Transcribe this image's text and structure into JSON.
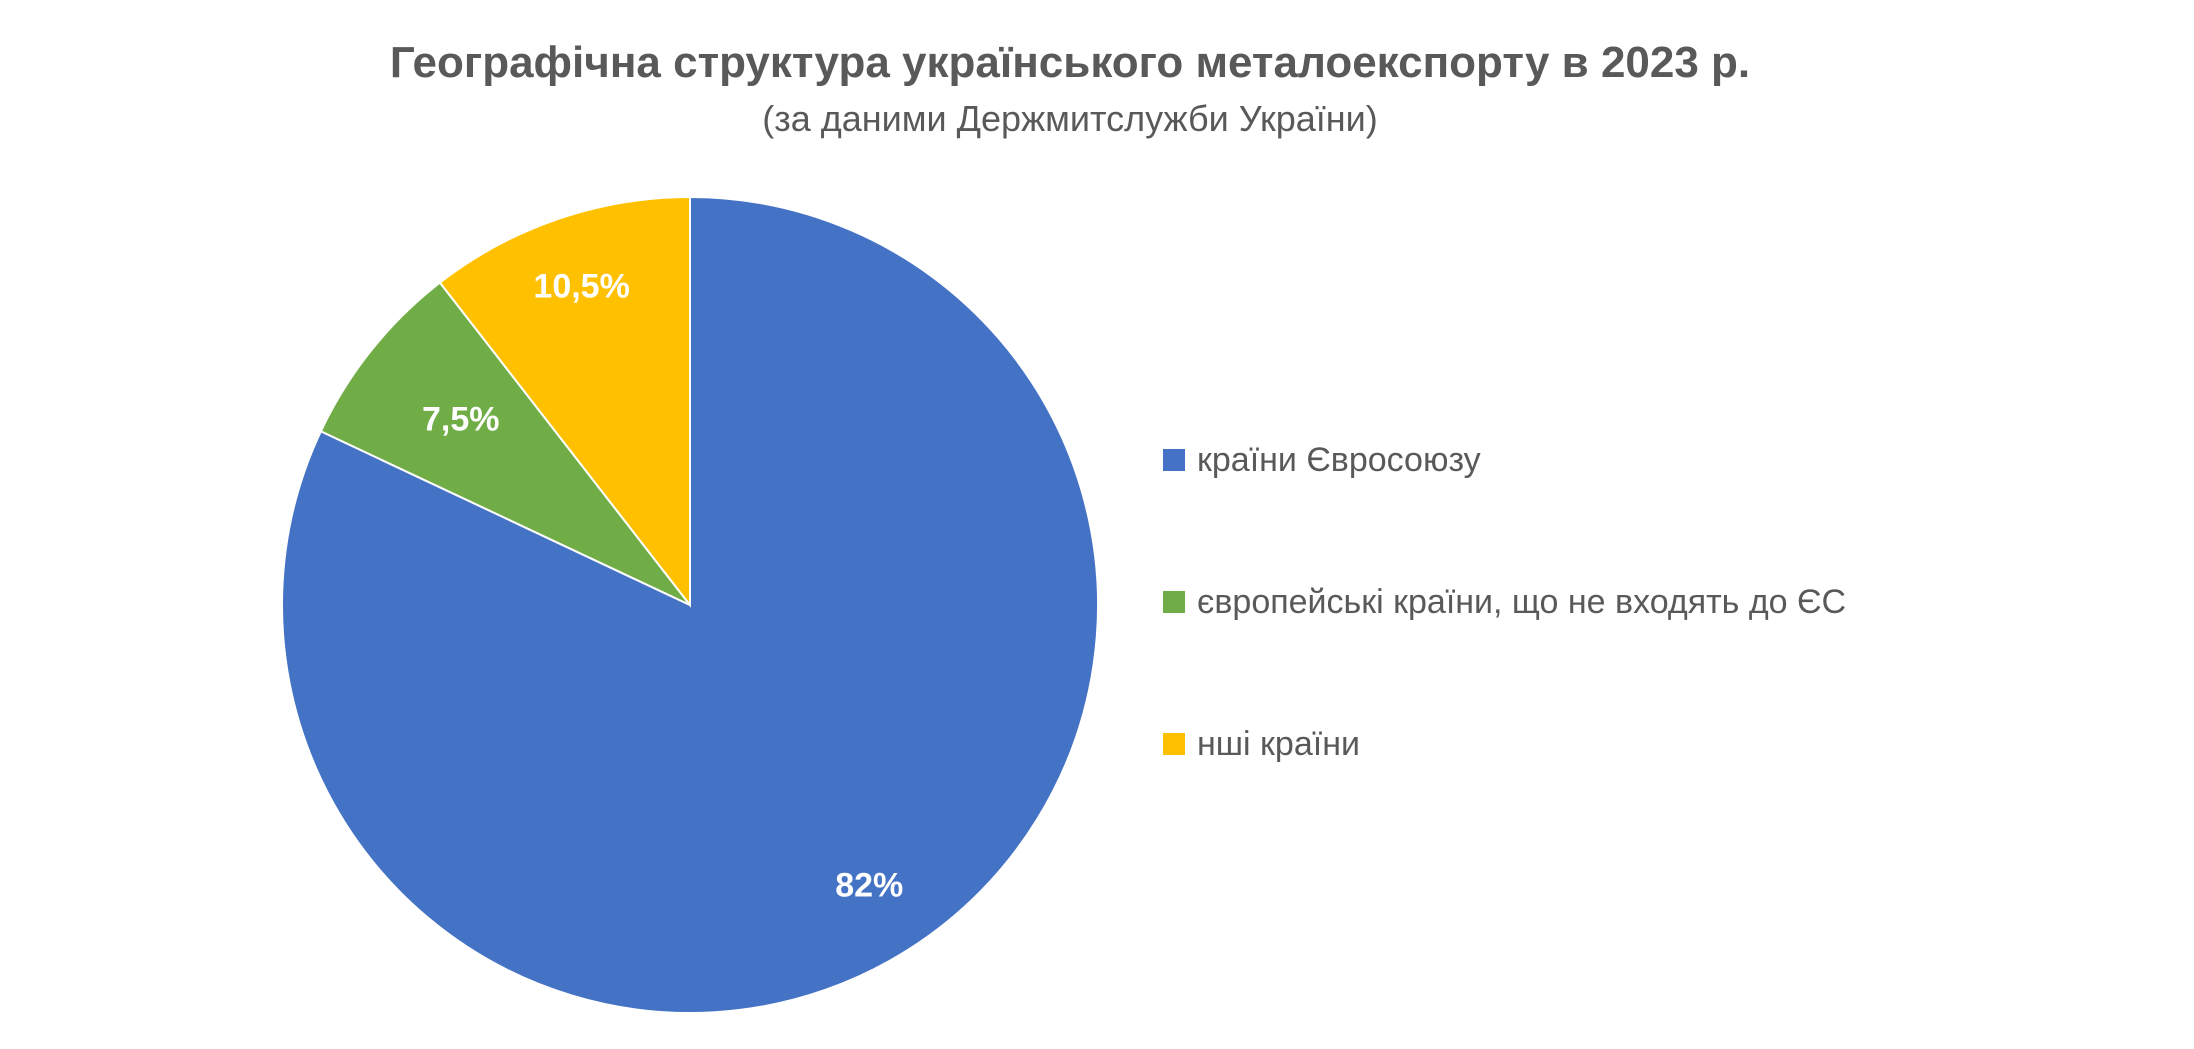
{
  "chart_data": {
    "type": "pie",
    "title": "Географічна структура українського металоекспорту в 2023 р.",
    "subtitle": "(за даними Держмитслужби України)",
    "legend_position": "right",
    "slices": [
      {
        "name": "країни Євросоюзу",
        "value": 82,
        "label": "82%",
        "color": "#4472C4"
      },
      {
        "name": "європейські країни, що не входять до ЄС",
        "value": 7.5,
        "label": "7,5%",
        "color": "#70AD47"
      },
      {
        "name": "нші країни",
        "value": 10.5,
        "label": "10,5%",
        "color": "#FFC000"
      }
    ]
  }
}
